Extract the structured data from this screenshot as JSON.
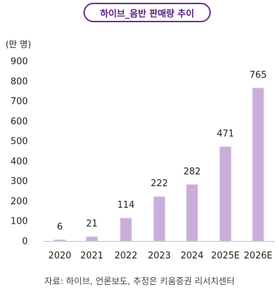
{
  "chart_data": {
    "type": "bar",
    "title": "하이브_음반 판매량 추이",
    "unit_label": "(만 명)",
    "categories": [
      "2020",
      "2021",
      "2022",
      "2023",
      "2024",
      "2025E",
      "2026E"
    ],
    "values": [
      6,
      21,
      114,
      222,
      282,
      471,
      765
    ],
    "data_labels": [
      "6",
      "21",
      "114",
      "222",
      "282",
      "471",
      "765"
    ],
    "yticks": [
      "0",
      "100",
      "200",
      "300",
      "400",
      "500",
      "600",
      "700",
      "800",
      "900"
    ],
    "ylim": [
      0,
      900
    ],
    "grid": false,
    "legend": "none",
    "bar_color": "#c8aed8",
    "bar_edge_color": "#d8c6e6",
    "source": "자료: 하이브, 언론보도, 추정은 키움증권 리서치센터"
  },
  "style": {
    "title_border_color": "#6a2a90",
    "title_text_color": "#5a1d82",
    "axis_color": "#c0c0c0"
  }
}
